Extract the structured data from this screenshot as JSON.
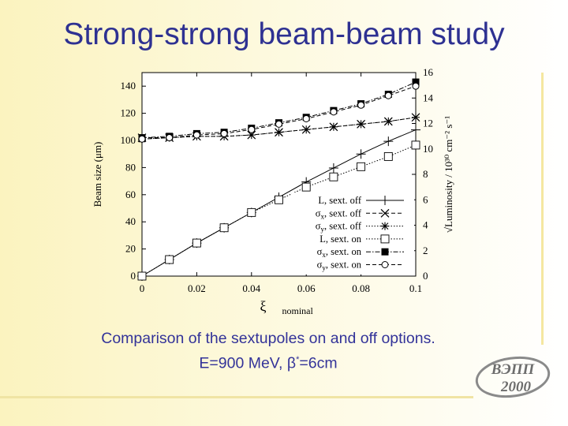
{
  "slide": {
    "title": "Strong-strong beam-beam study",
    "caption_line1": "Comparison of the sextupoles on and off options.",
    "caption_line2_prefix": "E=900 MeV, β",
    "caption_line2_sup": "*",
    "caption_line2_suffix": "=6cm"
  },
  "logo": {
    "text_top": "ВЭПП",
    "text_bottom": "2000",
    "color": "#6d6d6d"
  },
  "chart_data": {
    "type": "line",
    "xlabel": "ξ",
    "xlabel_sub": "nominal",
    "ylabel": "Beam size (μm)",
    "ylabel_right": "√Luminosity / 10³⁰ cm⁻² s⁻¹",
    "xlim": [
      0,
      0.1
    ],
    "ylim": [
      0,
      150
    ],
    "ylim_right": [
      0,
      16
    ],
    "xticks": [
      "0",
      "0.02",
      "0.04",
      "0.06",
      "0.08",
      "0.1"
    ],
    "yticks": [
      "0",
      "20",
      "40",
      "60",
      "80",
      "100",
      "120",
      "140"
    ],
    "yticks_right": [
      "0",
      "2",
      "4",
      "6",
      "8",
      "10",
      "12",
      "14",
      "16"
    ],
    "legend_position": "bottom-right",
    "series": [
      {
        "name": "L, sext. off",
        "axis": "right",
        "marker": "plus",
        "dash": "solid",
        "x": [
          0,
          0.01,
          0.02,
          0.03,
          0.04,
          0.05,
          0.06,
          0.07,
          0.08,
          0.09,
          0.1
        ],
        "y": [
          0,
          1.3,
          2.6,
          3.8,
          5.0,
          6.2,
          7.4,
          8.5,
          9.6,
          10.6,
          11.5
        ]
      },
      {
        "name": "σx, sext. off",
        "axis": "left",
        "marker": "x",
        "dash": "dashed",
        "x": [
          0,
          0.01,
          0.02,
          0.03,
          0.04,
          0.05,
          0.06,
          0.07,
          0.08,
          0.09,
          0.1
        ],
        "y": [
          102,
          102,
          103,
          103,
          104,
          106,
          108,
          110,
          112,
          114,
          117
        ]
      },
      {
        "name": "σy, sext. off",
        "axis": "left",
        "marker": "star",
        "dash": "dotted",
        "x": [
          0,
          0.01,
          0.02,
          0.03,
          0.04,
          0.05,
          0.06,
          0.07,
          0.08,
          0.09,
          0.1
        ],
        "y": [
          101,
          102,
          103,
          103,
          104,
          106,
          108,
          110,
          112,
          114,
          117
        ]
      },
      {
        "name": "L, sext. on",
        "axis": "right",
        "marker": "square-open",
        "dash": "dotted",
        "x": [
          0,
          0.01,
          0.02,
          0.03,
          0.04,
          0.05,
          0.06,
          0.07,
          0.08,
          0.09,
          0.1
        ],
        "y": [
          0,
          1.3,
          2.6,
          3.8,
          5.0,
          6.0,
          7.0,
          7.8,
          8.6,
          9.4,
          10.3
        ]
      },
      {
        "name": "σx, sext. on",
        "axis": "left",
        "marker": "square-filled",
        "dash": "dashdot",
        "x": [
          0,
          0.01,
          0.02,
          0.03,
          0.04,
          0.05,
          0.06,
          0.07,
          0.08,
          0.09,
          0.1
        ],
        "y": [
          102,
          103,
          105,
          106,
          109,
          113,
          117,
          122,
          127,
          134,
          143
        ]
      },
      {
        "name": "σy, sext. on",
        "axis": "left",
        "marker": "circle-open",
        "dash": "dashed",
        "x": [
          0,
          0.01,
          0.02,
          0.03,
          0.04,
          0.05,
          0.06,
          0.07,
          0.08,
          0.09,
          0.1
        ],
        "y": [
          101,
          102,
          104,
          105,
          108,
          112,
          116,
          121,
          126,
          133,
          140
        ]
      }
    ],
    "legend_labels": [
      {
        "base": "L",
        "sub": "",
        "rest": ", sext. off"
      },
      {
        "base": "σ",
        "sub": "x",
        "rest": ", sext. off"
      },
      {
        "base": "σ",
        "sub": "y",
        "rest": ", sext. off"
      },
      {
        "base": "L",
        "sub": "",
        "rest": ", sext. on"
      },
      {
        "base": "σ",
        "sub": "x",
        "rest": ", sext. on"
      },
      {
        "base": "σ",
        "sub": "y",
        "rest": ", sext. on"
      }
    ]
  }
}
